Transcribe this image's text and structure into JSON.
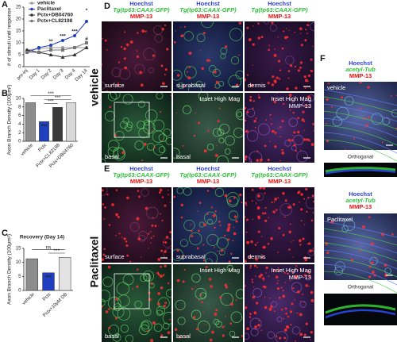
{
  "chart_data": [
    {
      "type": "line",
      "panel": "A",
      "ylabel": "# of stimuli until response",
      "categories": [
        "pre-inj",
        "Day 1",
        "Day 2",
        "Day 3",
        "Day 4",
        "Day 14"
      ],
      "series": [
        {
          "name": "vehicle",
          "color": "#9a9a9a",
          "marker": "circle",
          "values": [
            7,
            7.5,
            8,
            8,
            8,
            8
          ]
        },
        {
          "name": "Paclitaxel",
          "color": "#1f3fbf",
          "marker": "circle",
          "values": [
            6,
            8,
            9,
            11,
            13,
            19
          ]
        },
        {
          "name": "Pctx+DB04760",
          "color": "#333333",
          "marker": "triangle",
          "values": [
            7,
            6,
            5,
            4,
            5,
            8
          ]
        },
        {
          "name": "Pctx+CL82198",
          "color": "#777777",
          "marker": "square",
          "values": [
            6,
            6,
            7,
            7,
            8,
            10
          ]
        }
      ],
      "ylim": [
        0,
        25
      ],
      "yticks": [
        0,
        5,
        10,
        15,
        20,
        25
      ],
      "annotations": [
        {
          "text": "**",
          "x": 2,
          "y": 10.5
        },
        {
          "text": "***",
          "x": 3,
          "y": 12.8
        },
        {
          "text": "***",
          "x": 4,
          "y": 14.8
        },
        {
          "text": "*",
          "x": 5,
          "y": 23.5
        },
        {
          "text": "#",
          "x": 5,
          "y": 11.5
        }
      ]
    },
    {
      "type": "bar",
      "panel": "B",
      "ylabel": "Axon Branch Density (100μm²)",
      "categories": [
        "vehicle",
        "Pctx",
        "Pctx+CL82198",
        "Pctx+DB04760"
      ],
      "values": [
        9,
        4.6,
        7.9,
        9
      ],
      "colors": [
        "#8c8c8c",
        "#1f3fbf",
        "#3a3a3a",
        "#d9d9d9"
      ],
      "ylim": [
        0,
        10
      ],
      "yticks": [
        0,
        2,
        4,
        6,
        8,
        10
      ],
      "brackets": [
        {
          "text": "***",
          "from": 0,
          "to": 3,
          "y": 10.6
        },
        {
          "text": "***",
          "from": 1,
          "to": 3,
          "y": 9.7
        },
        {
          "text": "***",
          "from": 1,
          "to": 2,
          "y": 8.8
        }
      ],
      "bar_notes": [
        {
          "text": "***",
          "index": 1
        }
      ]
    },
    {
      "type": "bar",
      "panel": "C",
      "title": "Recovery (Day 14)",
      "ylabel": "Axon Branch Density (100μm²)",
      "categories": [
        "vehicle",
        "Pctx",
        "Pctx+10μM DB"
      ],
      "values": [
        11.3,
        6.3,
        11.8
      ],
      "colors": [
        "#8c8c8c",
        "#1f3fbf",
        "#e3e3e3"
      ],
      "ylim": [
        0,
        15
      ],
      "yticks": [
        0,
        5,
        10,
        15
      ],
      "brackets": [
        {
          "text": "ns",
          "from": 0,
          "to": 2,
          "y": 14.6
        },
        {
          "text": "***",
          "from": 1,
          "to": 2,
          "y": 13.3
        }
      ],
      "bar_notes": [
        {
          "text": "***",
          "index": 1
        }
      ]
    }
  ],
  "image_panels": [
    {
      "panel": "D",
      "condition": "vehicle",
      "headers": [
        [
          "Hoechst",
          "Tg(tp63:CAAX-GFP)",
          "MMP-13"
        ],
        [
          "Hoechst",
          "Tg(tp63:CAAX-GFP)",
          "MMP-13"
        ],
        [
          "Hoechst",
          "Tg(tp63:CAAX-GFP)",
          "MMP-13"
        ]
      ],
      "tiles": [
        {
          "label": "surface"
        },
        {
          "label": "suprabasal"
        },
        {
          "label": "dermis"
        },
        {
          "label": "basal"
        },
        {
          "title": "Inset High Mag",
          "label": "basal"
        },
        {
          "title": "Inset High Mag",
          "subtitle": "MMP-13"
        }
      ]
    },
    {
      "panel": "E",
      "condition": "Paclitaxel",
      "headers": [
        [
          "Hoechst",
          "Tg(tp63:CAAX-GFP)",
          "MMP-13"
        ],
        [
          "Hoechst",
          "Tg(tp63:CAAX-GFP)",
          "MMP-13"
        ],
        [
          "Hoechst",
          "Tg(tp63:CAAX-GFP)",
          "MMP-13"
        ]
      ],
      "tiles": [
        {
          "label": "surface"
        },
        {
          "label": "suprabasal"
        },
        {
          "label": "dermis"
        },
        {
          "label": "basal"
        },
        {
          "title": "Inset High Mag",
          "label": "basal"
        },
        {
          "title": "Inset High Mag",
          "subtitle": "MMP-13"
        }
      ]
    },
    {
      "panel": "F",
      "sections": [
        {
          "headers": [
            "Hoechst",
            "acetyl-Tub",
            "MMP-13"
          ],
          "label": "vehicle",
          "caption": "Orthogonal"
        },
        {
          "headers": [
            "Hoechst",
            "acetyl-Tub",
            "MMP-13"
          ],
          "label": "Paclitaxel",
          "caption": "Orthogonal"
        }
      ]
    }
  ]
}
